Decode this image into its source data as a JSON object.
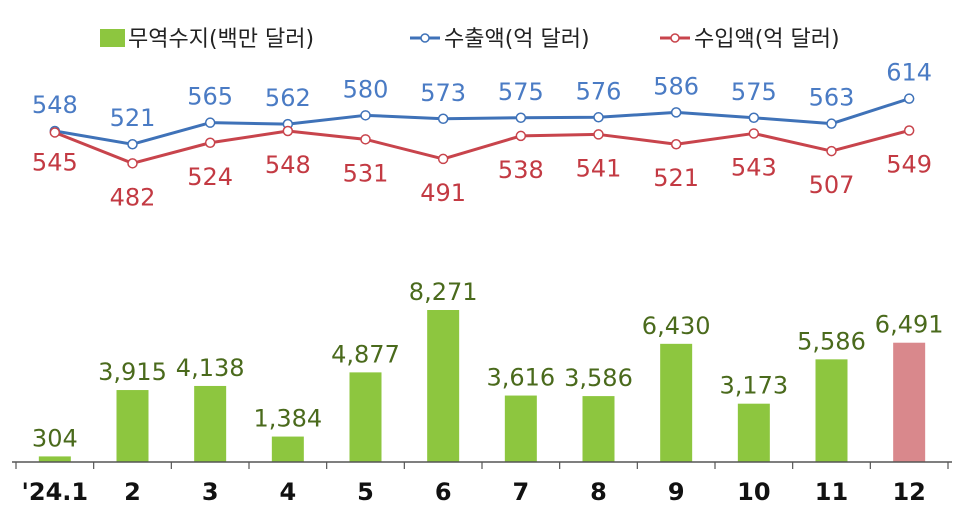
{
  "chart_data": {
    "type": "bar+line",
    "categories": [
      "'24.1",
      "2",
      "3",
      "4",
      "5",
      "6",
      "7",
      "8",
      "9",
      "10",
      "11",
      "12"
    ],
    "legend": {
      "placement": "top",
      "entries": [
        "무역수지(백만 달러)",
        "수출액(억 달러)",
        "수입액(억 달러)"
      ]
    },
    "bars": {
      "name": "무역수지(백만 달러)",
      "values": [
        304,
        3915,
        4138,
        1384,
        4877,
        8271,
        3616,
        3586,
        6430,
        3173,
        5586,
        6491
      ],
      "labels": [
        "304",
        "3,915",
        "4,138",
        "1,384",
        "4,877",
        "8,271",
        "3,616",
        "3,586",
        "6,430",
        "3,173",
        "5,586",
        "6,491"
      ],
      "color": "#8dc63f",
      "highlight_color": "#d9888c",
      "highlight_index": 11
    },
    "series": [
      {
        "name": "수출액(억 달러)",
        "values": [
          548,
          521,
          565,
          562,
          580,
          573,
          575,
          576,
          586,
          575,
          563,
          614
        ],
        "color": "#3f72b8",
        "label_color": "#4a7bc4"
      },
      {
        "name": "수입액(억 달러)",
        "values": [
          545,
          482,
          524,
          548,
          531,
          491,
          538,
          541,
          521,
          543,
          507,
          549
        ],
        "color": "#c8444c",
        "label_color": "#c33a43"
      }
    ],
    "grid": false
  }
}
